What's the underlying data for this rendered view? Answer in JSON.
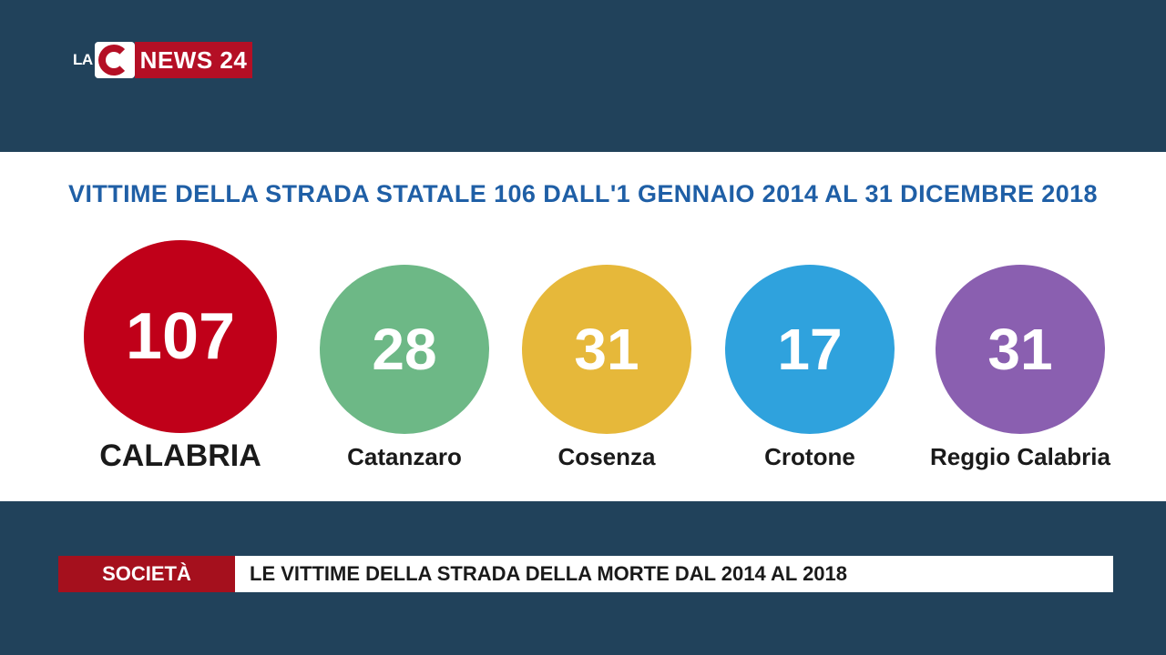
{
  "logo": {
    "prefix": "LA",
    "name": "NEWS 24"
  },
  "headline": "VITTIME DELLA STRADA STATALE 106 DALL'1 GENNAIO 2014 AL 31 DICEMBRE 2018",
  "stats": [
    {
      "value": "107",
      "label": "CALABRIA",
      "color": "#c00019"
    },
    {
      "value": "28",
      "label": "Catanzaro",
      "color": "#6db886"
    },
    {
      "value": "31",
      "label": "Cosenza",
      "color": "#e6b83a"
    },
    {
      "value": "17",
      "label": "Crotone",
      "color": "#2fa2dd"
    },
    {
      "value": "31",
      "label": "Reggio Calabria",
      "color": "#8a5fb0"
    }
  ],
  "ticker": {
    "category": "SOCIETÀ",
    "text": "LE VITTIME DELLA STRADA DELLA MORTE DAL 2014 AL 2018"
  }
}
